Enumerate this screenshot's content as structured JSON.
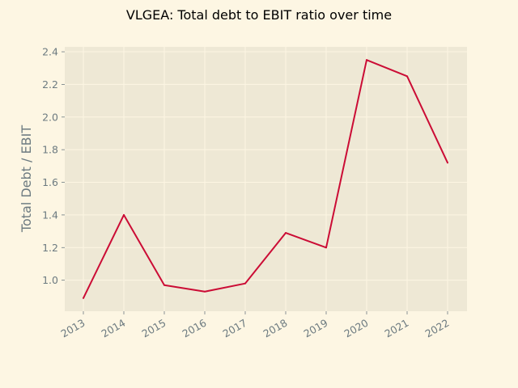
{
  "chart_data": {
    "type": "line",
    "title": "VLGEA: Total debt to EBIT ratio over time",
    "xlabel": "",
    "ylabel": "Total Debt / EBIT",
    "categories": [
      "2013",
      "2014",
      "2015",
      "2016",
      "2017",
      "2018",
      "2019",
      "2020",
      "2021",
      "2022"
    ],
    "series": [
      {
        "values": [
          0.89,
          1.4,
          0.97,
          0.93,
          0.98,
          1.29,
          1.2,
          2.35,
          2.25,
          1.72
        ]
      }
    ],
    "yticks": [
      "1.0",
      "1.2",
      "1.4",
      "1.6",
      "1.8",
      "2.0",
      "2.2",
      "2.4"
    ],
    "ylim": [
      0.81,
      2.43
    ],
    "grid": true,
    "colors": {
      "background": "#fdf6e3",
      "plot_area": "#eee8d5",
      "grid": "#fdf6e3",
      "line": "#cb0c35",
      "tick_text": "#6c7a80",
      "title_text": "#000000"
    }
  }
}
